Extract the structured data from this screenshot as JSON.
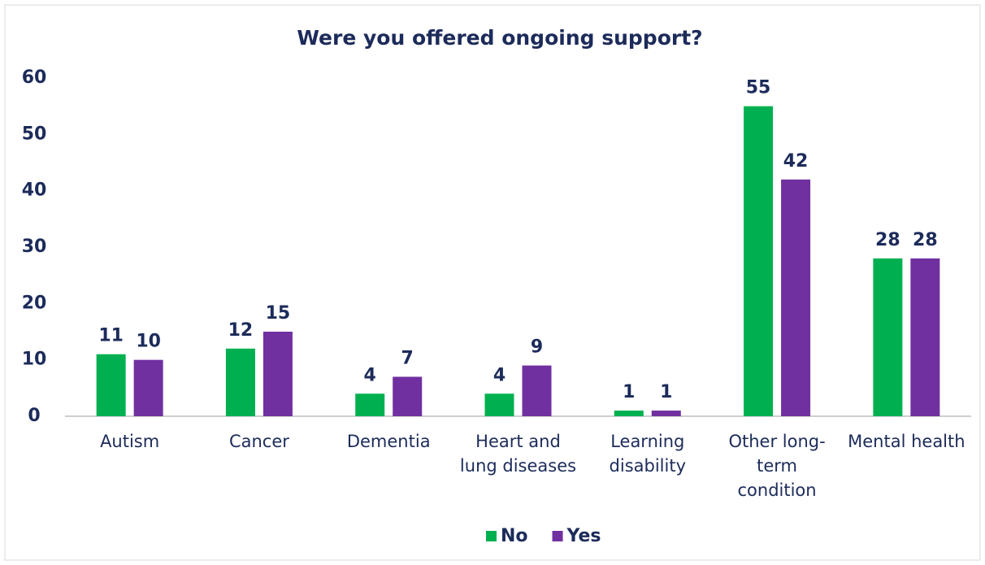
{
  "chart_data": {
    "type": "bar",
    "title": "Were you offered ongoing support?",
    "categories": [
      "Autism",
      "Cancer",
      "Dementia",
      "Heart and lung diseases",
      "Learning disability",
      "Other long-term condition",
      "Mental health"
    ],
    "series": [
      {
        "name": "No",
        "color": "#00b050",
        "values": [
          11,
          12,
          4,
          4,
          1,
          55,
          28
        ]
      },
      {
        "name": "Yes",
        "color": "#7030a0",
        "values": [
          10,
          15,
          7,
          9,
          1,
          42,
          28
        ]
      }
    ],
    "ylim": [
      0,
      60
    ],
    "yticks": [
      0,
      10,
      20,
      30,
      40,
      50,
      60
    ],
    "grid": false,
    "legend": "bottom"
  }
}
